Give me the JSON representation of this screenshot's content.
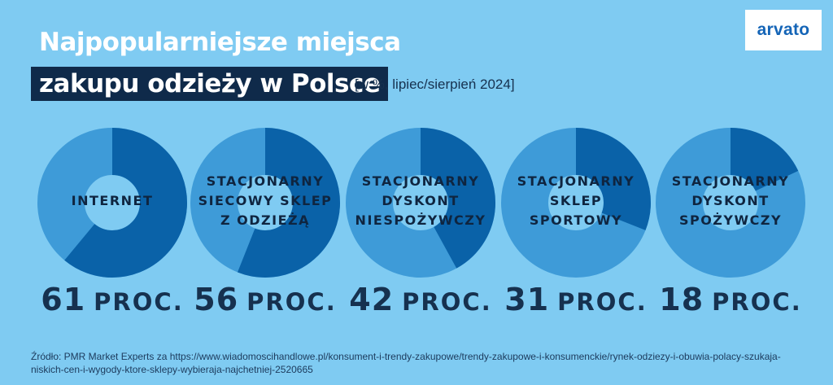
{
  "title": {
    "line1": "Najpopularniejsze miejsca",
    "line2": "zakupu odzieży w Polsce",
    "subtitle": "[w %, lipiec/sierpień 2024]"
  },
  "logo": {
    "text": "arvato"
  },
  "colors": {
    "background": "#7fcbf2",
    "donut_value": "#0a62a8",
    "donut_rest": "#3e9bd8",
    "title_box": "#0f2a4a",
    "dark_text": "#16314f"
  },
  "chart_data": {
    "type": "pie",
    "style": "donut",
    "unit": "%",
    "categories": [
      [
        "INTERNET"
      ],
      [
        "STACJONARNY",
        "SIECOWY SKLEP",
        "Z ODZIEŻĄ"
      ],
      [
        "STACJONARNY",
        "DYSKONT",
        "NIESPOŻYWCZY"
      ],
      [
        "STACJONARNY",
        "SKLEP",
        "SPORTOWY"
      ],
      [
        "STACJONARNY",
        "DYSKONT",
        "SPOŻYWCZY"
      ]
    ],
    "values": [
      61,
      56,
      42,
      31,
      18
    ],
    "value_unit_label": "PROC."
  },
  "source": "Źródło: PMR Market Experts za https://www.wiadomoscihandlowe.pl/konsument-i-trendy-zakupowe/trendy-zakupowe-i-konsumenckie/rynek-odziezy-i-obuwia-polacy-szukaja-niskich-cen-i-wygody-ktore-sklepy-wybieraja-najchetniej-2520665"
}
